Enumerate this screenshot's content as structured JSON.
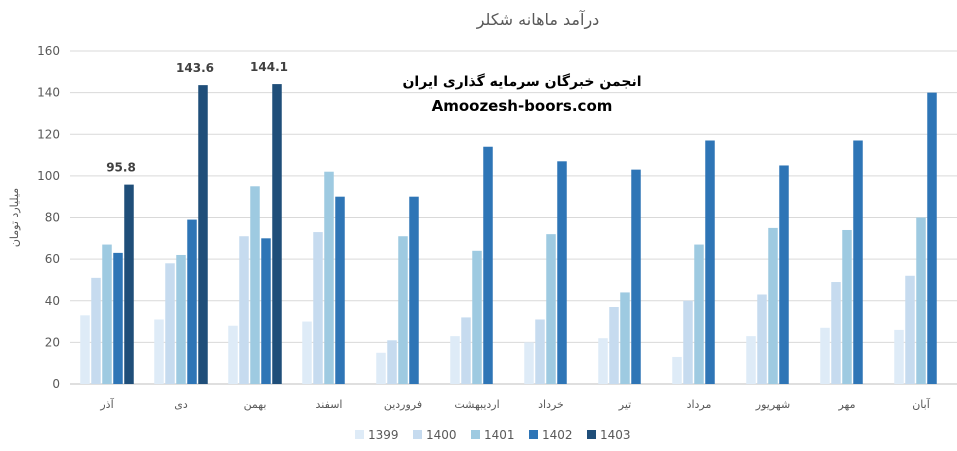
{
  "chart_data": {
    "type": "bar",
    "title": "درآمد ماهانه شکلر",
    "ylabel": "میلیارد تومان",
    "xlabel": "",
    "ylim": [
      0,
      160
    ],
    "yticks": [
      0,
      20,
      40,
      60,
      80,
      100,
      120,
      140,
      160
    ],
    "grid": true,
    "legend_position": "bottom",
    "categories": [
      "آذر",
      "دی",
      "بهمن",
      "اسفند",
      "فروردین",
      "اردیبهشت",
      "خرداد",
      "تیر",
      "مرداد",
      "شهریور",
      "مهر",
      "آبان"
    ],
    "series": [
      {
        "name": "1399",
        "color": "#deebf7",
        "values": [
          33,
          31,
          28,
          30,
          15,
          23,
          20,
          22,
          13,
          23,
          27,
          26
        ]
      },
      {
        "name": "1400",
        "color": "#c6dbef",
        "values": [
          51,
          58,
          71,
          73,
          21,
          32,
          31,
          37,
          40,
          43,
          49,
          52
        ]
      },
      {
        "name": "1401",
        "color": "#9ecae1",
        "values": [
          67,
          62,
          95,
          102,
          71,
          64,
          72,
          44,
          67,
          75,
          74,
          80
        ]
      },
      {
        "name": "1402",
        "color": "#2e75b6",
        "values": [
          63,
          79,
          70,
          90,
          90,
          114,
          107,
          103,
          117,
          105,
          117,
          140
        ]
      },
      {
        "name": "1403",
        "color": "#1f4e79",
        "values": [
          95.8,
          143.6,
          144.1,
          null,
          null,
          null,
          null,
          null,
          null,
          null,
          null,
          null
        ]
      }
    ],
    "data_labels": [
      "95.8",
      "143.6",
      "144.1"
    ]
  },
  "watermark": {
    "line1": "انجمن خبرگان سرمایه گذاری ایران",
    "line2": "Amoozesh-boors.com"
  }
}
